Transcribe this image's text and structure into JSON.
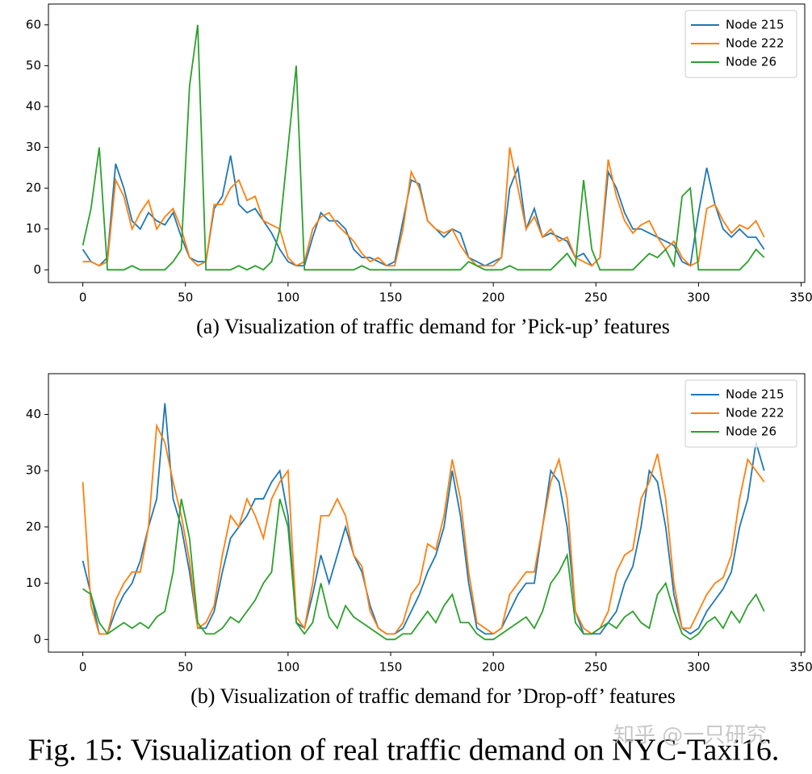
{
  "chart_data": [
    {
      "type": "line",
      "title": "(a) Visualization of traffic demand for ’Pick-up’ features",
      "x": [
        0,
        4,
        8,
        12,
        16,
        20,
        24,
        28,
        32,
        36,
        40,
        44,
        48,
        52,
        56,
        60,
        64,
        68,
        72,
        76,
        80,
        84,
        88,
        92,
        96,
        100,
        104,
        108,
        112,
        116,
        120,
        124,
        128,
        132,
        136,
        140,
        144,
        148,
        152,
        156,
        160,
        164,
        168,
        172,
        176,
        180,
        184,
        188,
        192,
        196,
        200,
        204,
        208,
        212,
        216,
        220,
        224,
        228,
        232,
        236,
        240,
        244,
        248,
        252,
        256,
        260,
        264,
        268,
        272,
        276,
        280,
        284,
        288,
        292,
        296,
        300,
        304,
        308,
        312,
        316,
        320,
        324,
        328,
        332
      ],
      "series": [
        {
          "name": "Node 215",
          "color": "#1f77b4",
          "values": [
            5,
            2,
            1,
            3,
            26,
            20,
            12,
            10,
            14,
            12,
            11,
            14,
            8,
            3,
            2,
            2,
            15,
            18,
            28,
            16,
            14,
            15,
            12,
            9,
            5,
            2,
            1,
            1,
            8,
            14,
            12,
            12,
            10,
            5,
            3,
            3,
            2,
            1,
            2,
            12,
            22,
            21,
            12,
            10,
            8,
            10,
            9,
            3,
            2,
            1,
            2,
            3,
            20,
            25,
            10,
            15,
            8,
            9,
            8,
            7,
            3,
            4,
            1,
            3,
            24,
            20,
            14,
            10,
            10,
            9,
            8,
            7,
            6,
            2,
            1,
            14,
            25,
            16,
            10,
            8,
            10,
            8,
            8,
            5
          ]
        },
        {
          "name": "Node 222",
          "color": "#ff7f0e",
          "values": [
            2,
            2,
            1,
            2,
            22,
            18,
            10,
            14,
            17,
            10,
            13,
            15,
            10,
            3,
            1,
            2,
            16,
            16,
            20,
            22,
            17,
            18,
            12,
            11,
            10,
            3,
            1,
            2,
            10,
            13,
            14,
            11,
            9,
            7,
            4,
            2,
            3,
            1,
            1,
            10,
            24,
            20,
            12,
            10,
            9,
            10,
            6,
            3,
            1,
            1,
            1,
            3,
            30,
            20,
            10,
            13,
            8,
            10,
            7,
            8,
            3,
            2,
            1,
            3,
            27,
            18,
            12,
            9,
            11,
            12,
            8,
            5,
            7,
            3,
            1,
            2,
            15,
            16,
            12,
            9,
            11,
            10,
            12,
            8
          ]
        },
        {
          "name": "Node 26",
          "color": "#2ca02c",
          "values": [
            6,
            15,
            30,
            0,
            0,
            0,
            1,
            0,
            0,
            0,
            0,
            2,
            5,
            45,
            60,
            0,
            0,
            0,
            0,
            1,
            0,
            1,
            0,
            2,
            10,
            30,
            50,
            0,
            0,
            0,
            0,
            0,
            0,
            0,
            1,
            0,
            0,
            0,
            0,
            0,
            0,
            0,
            0,
            0,
            0,
            0,
            0,
            2,
            1,
            0,
            0,
            0,
            1,
            0,
            0,
            0,
            0,
            0,
            2,
            4,
            1,
            22,
            5,
            0,
            0,
            0,
            0,
            0,
            2,
            4,
            3,
            5,
            1,
            18,
            20,
            0,
            0,
            0,
            0,
            0,
            0,
            2,
            5,
            3
          ]
        }
      ],
      "xlim": [
        -16.75,
        351.75
      ],
      "ylim": [
        -3.1,
        65.1
      ],
      "xticks": [
        0,
        50,
        100,
        150,
        200,
        250,
        300,
        350
      ],
      "yticks": [
        0,
        10,
        20,
        30,
        40,
        50,
        60
      ],
      "legend": "upper right"
    },
    {
      "type": "line",
      "title": "(b) Visualization of traffic demand for ’Drop-off’ features",
      "x": [
        0,
        4,
        8,
        12,
        16,
        20,
        24,
        28,
        32,
        36,
        40,
        44,
        48,
        52,
        56,
        60,
        64,
        68,
        72,
        76,
        80,
        84,
        88,
        92,
        96,
        100,
        104,
        108,
        112,
        116,
        120,
        124,
        128,
        132,
        136,
        140,
        144,
        148,
        152,
        156,
        160,
        164,
        168,
        172,
        176,
        180,
        184,
        188,
        192,
        196,
        200,
        204,
        208,
        212,
        216,
        220,
        224,
        228,
        232,
        236,
        240,
        244,
        248,
        252,
        256,
        260,
        264,
        268,
        272,
        276,
        280,
        284,
        288,
        292,
        296,
        300,
        304,
        308,
        312,
        316,
        320,
        324,
        328,
        332
      ],
      "series": [
        {
          "name": "Node 215",
          "color": "#1f77b4",
          "values": [
            14,
            8,
            1,
            1,
            5,
            8,
            10,
            14,
            20,
            25,
            42,
            25,
            20,
            12,
            2,
            2,
            5,
            12,
            18,
            20,
            22,
            25,
            25,
            28,
            30,
            22,
            3,
            2,
            8,
            15,
            10,
            15,
            20,
            15,
            12,
            6,
            2,
            1,
            1,
            2,
            5,
            8,
            12,
            15,
            20,
            30,
            22,
            10,
            2,
            1,
            1,
            2,
            5,
            8,
            10,
            10,
            20,
            30,
            28,
            20,
            5,
            1,
            1,
            1,
            3,
            5,
            10,
            13,
            20,
            30,
            28,
            20,
            8,
            2,
            1,
            2,
            5,
            7,
            9,
            12,
            20,
            25,
            35,
            30
          ]
        },
        {
          "name": "Node 222",
          "color": "#ff7f0e",
          "values": [
            28,
            6,
            1,
            1,
            7,
            10,
            12,
            12,
            20,
            38,
            35,
            28,
            22,
            14,
            2,
            3,
            6,
            15,
            22,
            20,
            25,
            22,
            18,
            25,
            28,
            30,
            4,
            2,
            10,
            22,
            22,
            25,
            22,
            15,
            13,
            5,
            2,
            1,
            1,
            3,
            8,
            10,
            17,
            16,
            22,
            32,
            25,
            12,
            3,
            2,
            1,
            2,
            8,
            10,
            12,
            12,
            20,
            28,
            32,
            25,
            5,
            2,
            1,
            2,
            5,
            12,
            15,
            16,
            25,
            28,
            33,
            25,
            10,
            2,
            2,
            5,
            8,
            10,
            11,
            15,
            25,
            32,
            30,
            28
          ]
        },
        {
          "name": "Node 26",
          "color": "#2ca02c",
          "values": [
            9,
            8,
            3,
            1,
            2,
            3,
            2,
            3,
            2,
            4,
            5,
            12,
            25,
            18,
            3,
            1,
            1,
            2,
            4,
            3,
            5,
            7,
            10,
            12,
            25,
            20,
            3,
            1,
            3,
            10,
            4,
            2,
            6,
            4,
            3,
            2,
            1,
            0,
            0,
            1,
            1,
            3,
            5,
            3,
            6,
            8,
            3,
            3,
            1,
            0,
            0,
            1,
            2,
            3,
            4,
            2,
            5,
            10,
            12,
            15,
            3,
            1,
            1,
            2,
            3,
            2,
            4,
            5,
            3,
            2,
            8,
            10,
            5,
            1,
            0,
            1,
            3,
            4,
            2,
            5,
            3,
            6,
            8,
            5
          ]
        }
      ],
      "xlim": [
        -16.75,
        351.75
      ],
      "ylim": [
        -2.25,
        47.25
      ],
      "xticks": [
        0,
        50,
        100,
        150,
        200,
        250,
        300,
        350
      ],
      "yticks": [
        0,
        10,
        20,
        30,
        40
      ],
      "legend": "upper right"
    }
  ],
  "caption": "Fig. 15: Visualization of real traffic demand on NYC-Taxi16.",
  "watermark": "知乎 @一只研究"
}
